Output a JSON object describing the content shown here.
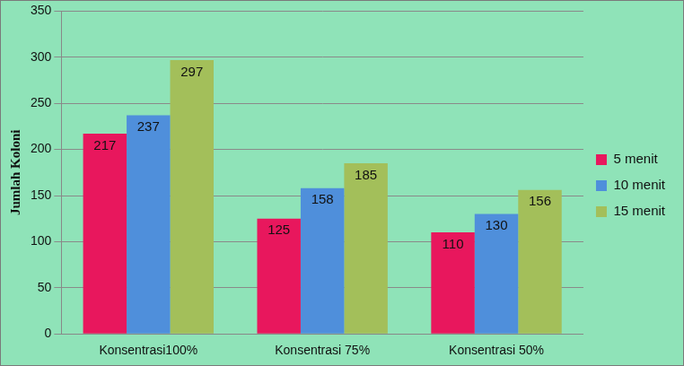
{
  "chart_data": {
    "type": "bar",
    "categories": [
      "Konsentrasi100%",
      "Konsentrasi 75%",
      "Konsentrasi 50%"
    ],
    "series": [
      {
        "name": "5 menit",
        "color": "#e8175d",
        "values": [
          217,
          125,
          110
        ]
      },
      {
        "name": "10 menit",
        "color": "#4f8fdb",
        "values": [
          237,
          158,
          130
        ]
      },
      {
        "name": "15 menit",
        "color": "#a3bf5a",
        "values": [
          297,
          185,
          156
        ]
      }
    ],
    "y_label": "Jumlah Koloni",
    "ylim": [
      0,
      350
    ],
    "yticks": [
      0,
      50,
      100,
      150,
      200,
      250,
      300,
      350
    ],
    "grid": true,
    "legend": "right",
    "data_labels": true
  }
}
